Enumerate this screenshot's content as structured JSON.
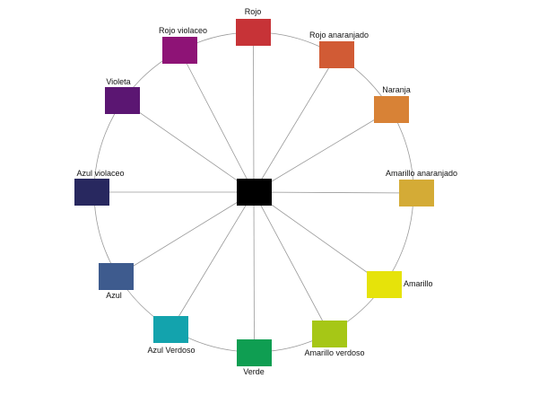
{
  "diagram": {
    "center_color": "#000000",
    "line_color": "#9a9a9a",
    "swatches": [
      {
        "label": "Rojo",
        "color": "#c73337"
      },
      {
        "label": "Rojo anaranjado",
        "color": "#d15b35"
      },
      {
        "label": "Naranja",
        "color": "#d88236"
      },
      {
        "label": "Amarillo anaranjado",
        "color": "#d4ab36"
      },
      {
        "label": "Amarillo",
        "color": "#e6e30a"
      },
      {
        "label": "Amarillo verdoso",
        "color": "#a6c716"
      },
      {
        "label": "Verde",
        "color": "#0f9e52"
      },
      {
        "label": "Azul Verdoso",
        "color": "#13a3ad"
      },
      {
        "label": "Azul",
        "color": "#3e5b8e"
      },
      {
        "label": "Azul violaceo",
        "color": "#28285f"
      },
      {
        "label": "Violeta",
        "color": "#5b1672"
      },
      {
        "label": "Rojo violaceo",
        "color": "#8e1376"
      }
    ]
  }
}
